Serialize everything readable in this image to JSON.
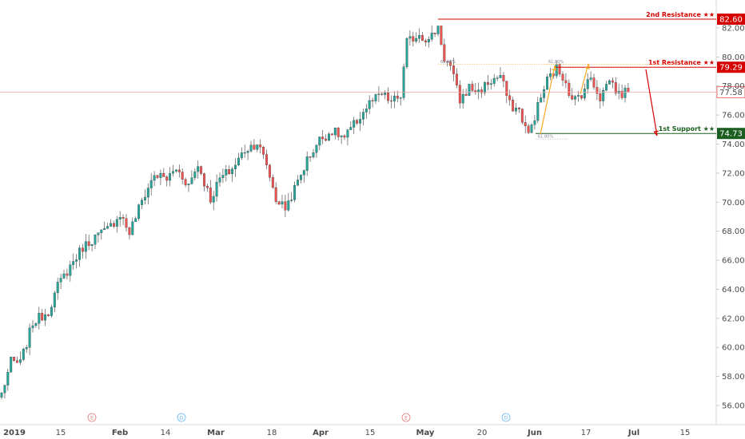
{
  "chart_data": {
    "type": "candlestick",
    "ylim": [
      55,
      83.5
    ],
    "y_ticks": [
      "56.00",
      "58.00",
      "60.00",
      "62.00",
      "64.00",
      "66.00",
      "68.00",
      "70.00",
      "72.00",
      "74.00",
      "76.00",
      "78.00",
      "80.00",
      "82.00"
    ],
    "x_ticks": [
      "2019",
      "15",
      "Feb",
      "14",
      "Mar",
      "18",
      "Apr",
      "15",
      "May",
      "20",
      "Jun",
      "17",
      "Jul",
      "15"
    ],
    "event_markers": [
      "E",
      "D",
      "E",
      "D"
    ],
    "last_price": {
      "value": 77.58,
      "label": "77.58",
      "color": "#ef5350"
    },
    "levels": [
      {
        "name": "2nd Resistance ★★",
        "value": 82.6,
        "tag": "82.60",
        "color": "#d50000"
      },
      {
        "name": "1st Resistance ★★",
        "value": 79.29,
        "tag": "79.29",
        "color": "#d50000"
      },
      {
        "name": "1st Support ★★",
        "value": 74.73,
        "tag": "74.73",
        "color": "#1b5e20"
      }
    ],
    "fib_labels": [
      "61.80%",
      "61.80%",
      "61.80%"
    ],
    "colors": {
      "up": "#26a69a",
      "down": "#ef5350",
      "wick": "#555555",
      "arrow_up": "#f9a825",
      "arrow_down": "#d50000"
    },
    "anchors": [
      [
        0,
        56.8
      ],
      [
        3,
        59.0
      ],
      [
        6,
        58.9
      ],
      [
        10,
        61.7
      ],
      [
        15,
        62.5
      ],
      [
        18,
        64.2
      ],
      [
        22,
        65.6
      ],
      [
        26,
        66.9
      ],
      [
        30,
        67.6
      ],
      [
        34,
        68.1
      ],
      [
        38,
        69.2
      ],
      [
        41,
        67.9
      ],
      [
        45,
        70.1
      ],
      [
        49,
        71.9
      ],
      [
        53,
        71.6
      ],
      [
        56,
        72.3
      ],
      [
        60,
        71.2
      ],
      [
        63,
        72.6
      ],
      [
        67,
        70.2
      ],
      [
        70,
        71.6
      ],
      [
        74,
        72.3
      ],
      [
        78,
        73.6
      ],
      [
        82,
        74.1
      ],
      [
        85,
        72.6
      ],
      [
        88,
        70.2
      ],
      [
        91,
        69.6
      ],
      [
        94,
        70.9
      ],
      [
        98,
        72.9
      ],
      [
        102,
        74.3
      ],
      [
        106,
        74.9
      ],
      [
        110,
        74.4
      ],
      [
        114,
        75.6
      ],
      [
        118,
        76.8
      ],
      [
        122,
        77.4
      ],
      [
        125,
        76.9
      ],
      [
        128,
        77.3
      ],
      [
        130,
        81.0
      ],
      [
        134,
        81.6
      ],
      [
        137,
        81.1
      ],
      [
        140,
        82.1
      ],
      [
        142,
        79.9
      ],
      [
        144,
        79.3
      ],
      [
        147,
        77.0
      ],
      [
        150,
        77.9
      ],
      [
        153,
        77.6
      ],
      [
        156,
        78.2
      ],
      [
        160,
        78.7
      ],
      [
        163,
        76.7
      ],
      [
        166,
        76.3
      ],
      [
        169,
        74.6
      ],
      [
        172,
        76.6
      ],
      [
        175,
        78.4
      ],
      [
        178,
        79.2
      ],
      [
        181,
        78.4
      ],
      [
        183,
        76.9
      ],
      [
        186,
        77.5
      ],
      [
        189,
        78.6
      ],
      [
        192,
        77.2
      ],
      [
        195,
        78.5
      ],
      [
        198,
        77.4
      ],
      [
        201,
        77.58
      ]
    ]
  }
}
